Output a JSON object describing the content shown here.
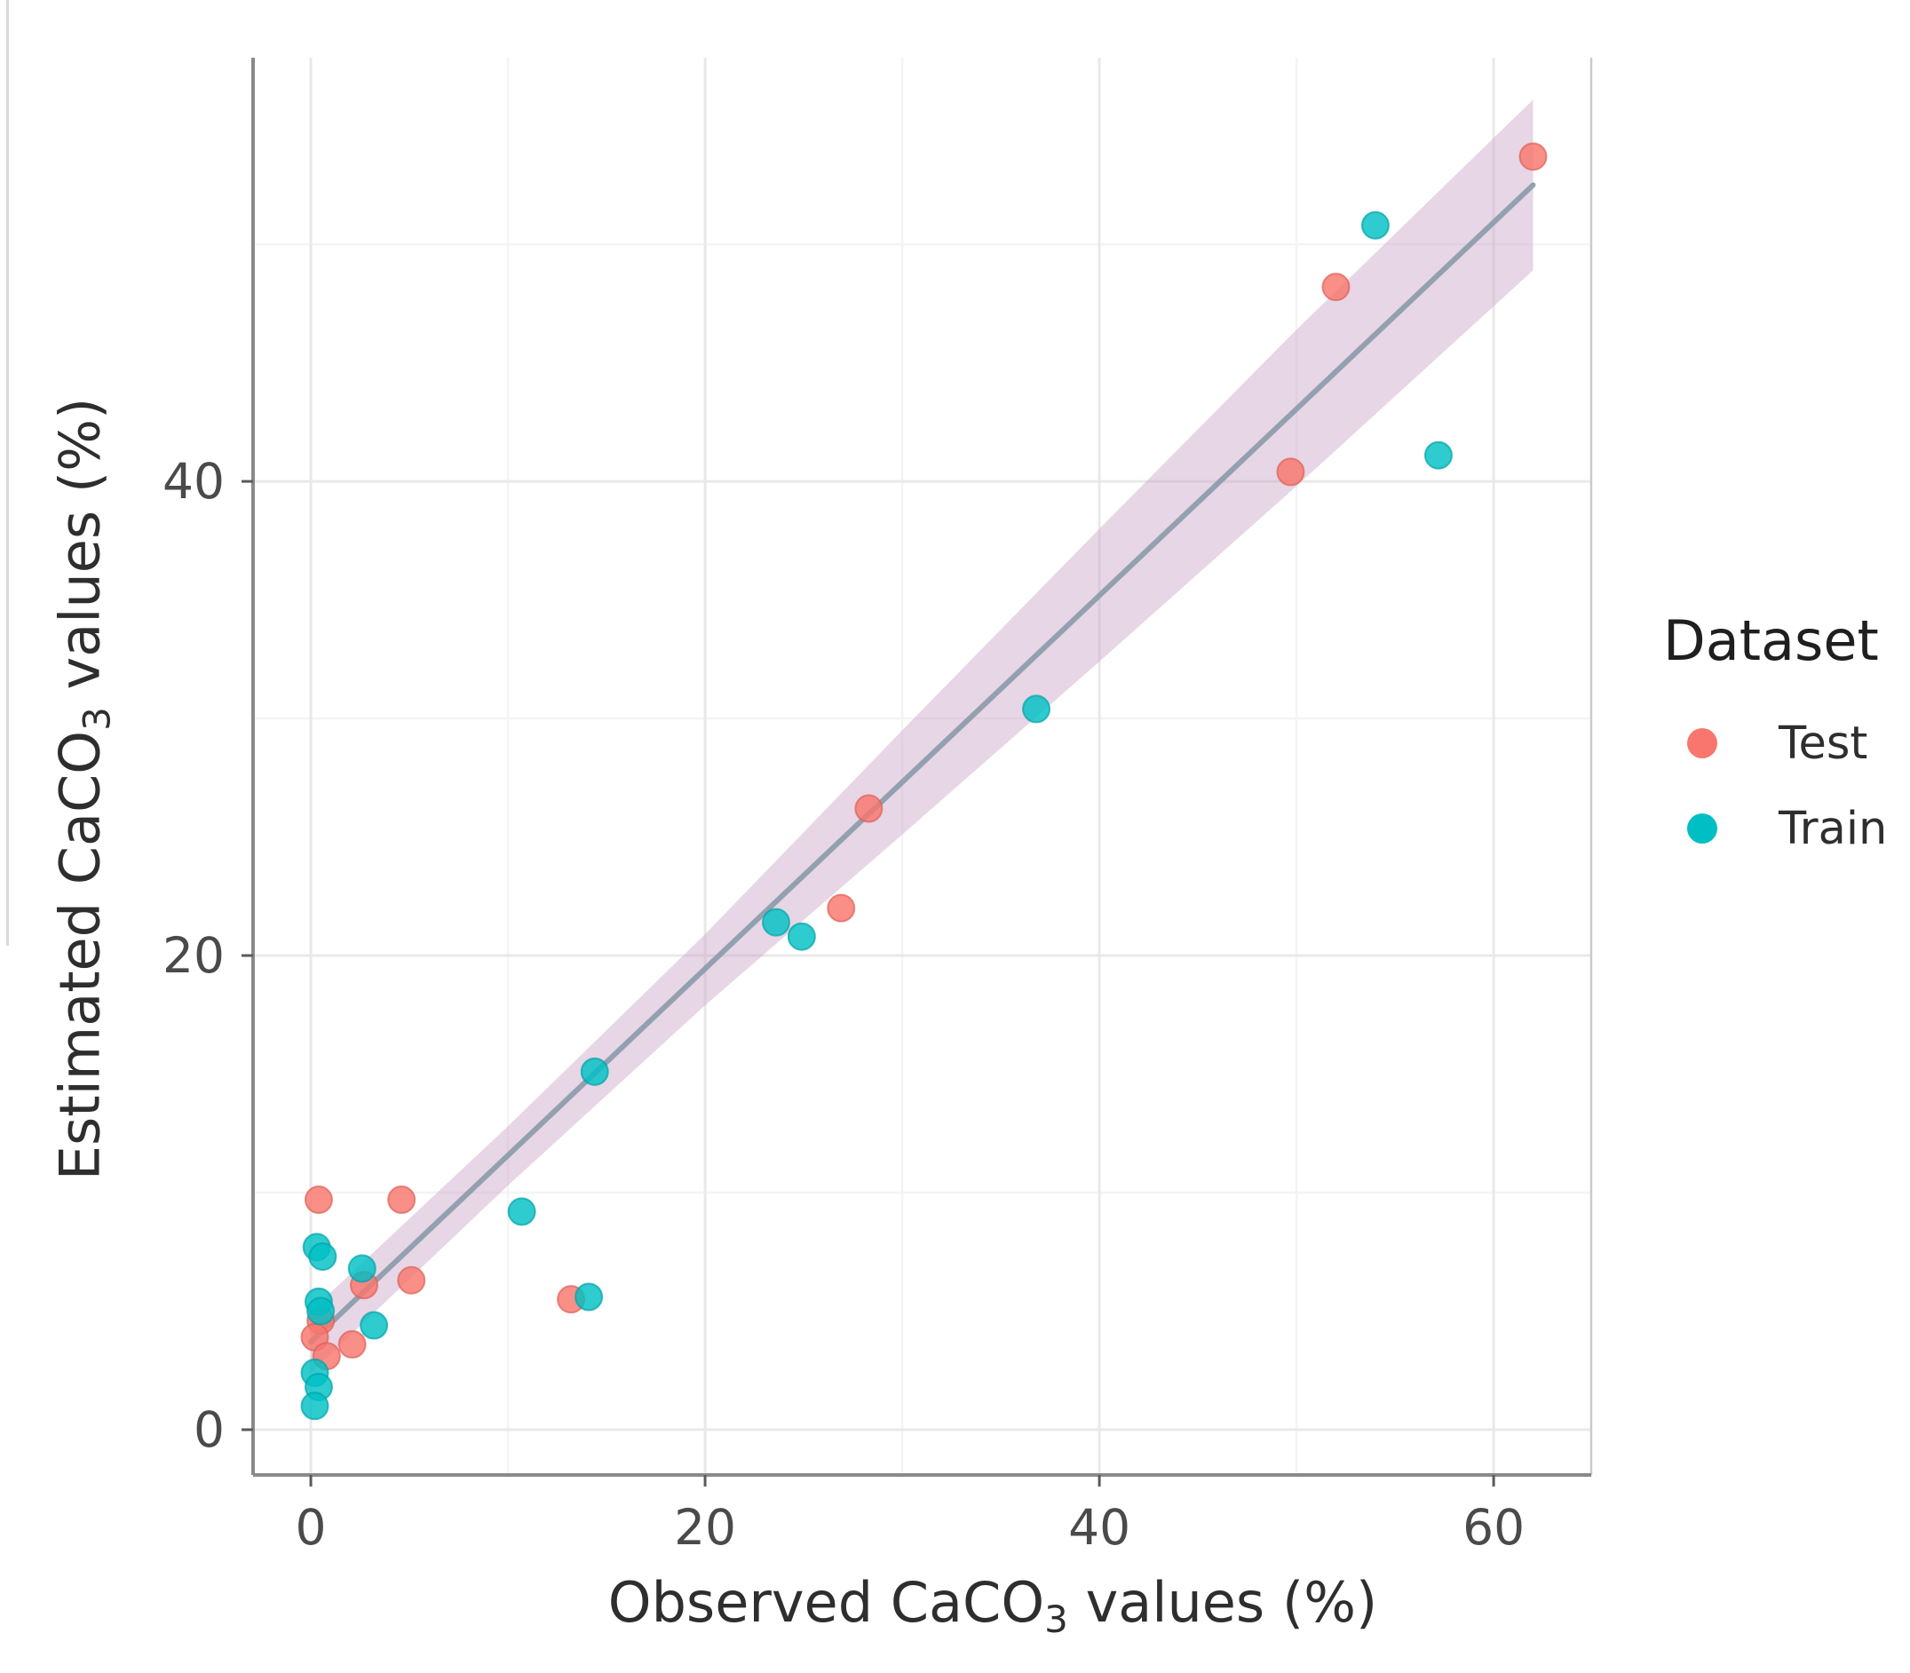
{
  "figure": {
    "x_axis": {
      "title_pre": "Observed CaCO",
      "title_sub": "3",
      "title_post": " values (%)"
    },
    "y_axis": {
      "title_pre": "Estimated CaCO",
      "title_sub": "3",
      "title_post": " values (%)"
    },
    "legend": {
      "title": "Dataset",
      "items": [
        {
          "label": "Test",
          "color": "#F8766D"
        },
        {
          "label": "Train",
          "color": "#00BFC4"
        }
      ]
    }
  },
  "colors": {
    "grid_major": "#E9E9E9",
    "grid_minor": "#F4F4F4",
    "axis_line": "#8A8A8A",
    "panel_border": "#CBCBCB",
    "tick_mark": "#5A5A5A",
    "tick_text": "#4A4A4A"
  },
  "chart_data": {
    "type": "scatter",
    "title": "",
    "xlabel": "Observed CaCO3 values (%)",
    "ylabel": "Estimated CaCO3 values (%)",
    "xlim": [
      -2.93,
      64.95
    ],
    "ylim": [
      -1.91,
      57.87
    ],
    "grid": true,
    "legend_position": "right",
    "x_ticks": {
      "major": [
        0,
        20,
        40,
        60
      ],
      "minor": [
        10,
        30,
        50
      ],
      "labels": [
        "0",
        "20",
        "40",
        "60"
      ]
    },
    "y_ticks": {
      "major": [
        0,
        20,
        40
      ],
      "minor": [
        10,
        30,
        50
      ],
      "labels": [
        "0",
        "20",
        "40"
      ]
    },
    "series": [
      {
        "name": "Test",
        "color": "#F8766D",
        "stroke": "#DD5F58",
        "points": [
          [
            0.4,
            9.7
          ],
          [
            4.6,
            9.7
          ],
          [
            2.7,
            6.1
          ],
          [
            5.1,
            6.3
          ],
          [
            0.5,
            4.6
          ],
          [
            0.2,
            3.9
          ],
          [
            0.8,
            3.1
          ],
          [
            2.1,
            3.6
          ],
          [
            13.2,
            5.5
          ],
          [
            26.9,
            22.0
          ],
          [
            28.3,
            26.2
          ],
          [
            49.7,
            40.4
          ],
          [
            52.0,
            48.2
          ],
          [
            62.0,
            53.7
          ]
        ]
      },
      {
        "name": "Train",
        "color": "#00BFC4",
        "stroke": "#00A2A7",
        "points": [
          [
            0.3,
            7.7
          ],
          [
            0.6,
            7.3
          ],
          [
            2.6,
            6.8
          ],
          [
            0.4,
            5.4
          ],
          [
            0.5,
            5.0
          ],
          [
            3.2,
            4.4
          ],
          [
            0.2,
            2.4
          ],
          [
            0.4,
            1.8
          ],
          [
            0.2,
            1.0
          ],
          [
            10.7,
            9.2
          ],
          [
            14.1,
            5.6
          ],
          [
            14.4,
            15.1
          ],
          [
            23.6,
            21.4
          ],
          [
            24.9,
            20.8
          ],
          [
            36.8,
            30.4
          ],
          [
            54.0,
            50.8
          ],
          [
            57.2,
            41.1
          ]
        ]
      }
    ],
    "smooth": {
      "line": {
        "x": [
          0,
          62
        ],
        "y": [
          3.7,
          52.5
        ],
        "color": "#8A9AA9"
      },
      "ci_band": {
        "x": [
          0,
          10,
          20,
          30,
          40,
          50,
          62
        ],
        "upper": [
          5.0,
          12.8,
          20.9,
          29.5,
          38.0,
          46.4,
          56.1
        ],
        "lower": [
          2.4,
          10.3,
          17.9,
          25.1,
          32.4,
          39.8,
          48.9
        ],
        "color": "#C9A3C6",
        "opacity": 0.45
      }
    }
  }
}
